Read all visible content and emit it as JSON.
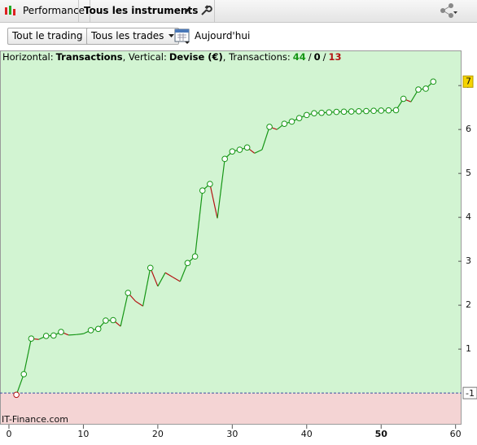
{
  "toolbar": {
    "tabs": [
      "Performance",
      "Tous les instruments"
    ]
  },
  "filters": {
    "buttons": [
      "Tout le trading",
      "Tous les trades"
    ],
    "date": "Aujourd'hui"
  },
  "chart_data": {
    "type": "line",
    "info": [
      "Horizontal:",
      "Transactions",
      ", Vertical:",
      "Devise (€)",
      ", Transactions:",
      "44",
      "/",
      "0",
      "/",
      "13"
    ],
    "x": [
      1,
      2,
      3,
      4,
      5,
      6,
      7,
      8,
      9,
      10,
      11,
      12,
      13,
      14,
      15,
      16,
      17,
      18,
      19,
      20,
      21,
      22,
      23,
      24,
      25,
      26,
      27,
      28,
      29,
      30,
      31,
      32,
      33,
      34,
      35,
      36,
      37,
      38,
      39,
      40,
      41,
      42,
      43,
      44,
      45,
      46,
      47,
      48,
      49,
      50,
      51,
      52,
      53,
      54,
      55,
      56,
      57
    ],
    "series": [
      {
        "color": "#169616",
        "down_color": "#b41414",
        "values": [
          -0.04,
          0.43,
          1.24,
          1.22,
          1.3,
          1.31,
          1.39,
          1.32,
          1.33,
          1.35,
          1.43,
          1.46,
          1.65,
          1.66,
          1.52,
          2.28,
          2.09,
          1.98,
          2.85,
          2.43,
          2.74,
          2.64,
          2.54,
          2.96,
          3.11,
          4.61,
          4.76,
          3.98,
          5.33,
          5.5,
          5.54,
          5.59,
          5.46,
          5.54,
          6.06,
          6.0,
          6.13,
          6.18,
          6.26,
          6.33,
          6.37,
          6.38,
          6.39,
          6.4,
          6.405,
          6.41,
          6.415,
          6.42,
          6.425,
          6.43,
          6.435,
          6.44,
          6.7,
          6.63,
          6.91,
          6.93,
          7.09
        ]
      }
    ],
    "xlim": [
      -1.2,
      60.8
    ],
    "xticks": [
      0,
      10,
      20,
      30,
      40,
      50,
      60
    ],
    "xtick_bold": 50,
    "ylim": [
      -0.72,
      7.8
    ],
    "yticks": [
      1,
      2,
      3,
      4,
      5,
      6,
      7
    ],
    "current_marker": "7",
    "zero_marker": "-1",
    "watermark": "IT-Finance.com",
    "bg_positive": "#d2f4d2",
    "bg_negative": "#f4d4d4",
    "zero_line_color": "#3a4fa0"
  }
}
